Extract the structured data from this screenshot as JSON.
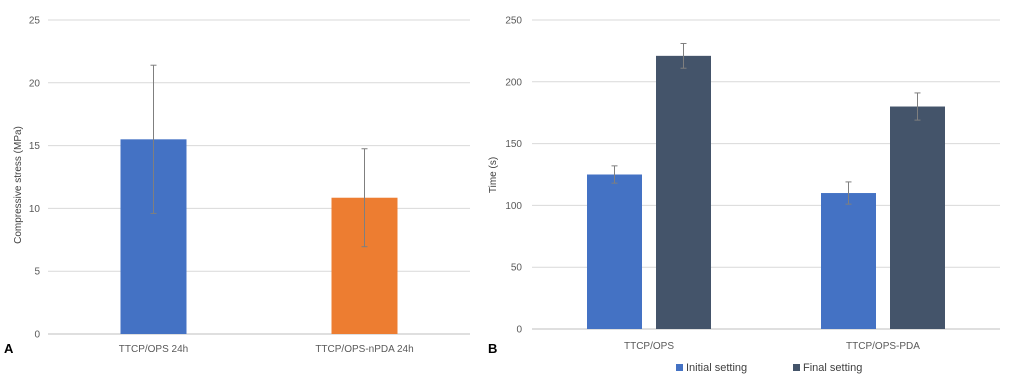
{
  "chart_data": [
    {
      "type": "bar",
      "panel_label": "A",
      "categories": [
        "TTCP/OPS 24h",
        "TTCP/OPS-nPDA 24h"
      ],
      "values": [
        15.5,
        10.85
      ],
      "errors": [
        5.9,
        3.9
      ],
      "bar_colors": [
        "#4472C4",
        "#ED7D31"
      ],
      "xlabel": "",
      "ylabel": "Compressive stress (MPa)",
      "ylim": [
        0,
        25
      ],
      "yticks": [
        "0",
        "5",
        "10",
        "15",
        "20",
        "25"
      ],
      "grid": true
    },
    {
      "type": "bar",
      "panel_label": "B",
      "categories": [
        "TTCP/OPS",
        "TTCP/OPS-PDA"
      ],
      "series": [
        {
          "name": "Initial setting",
          "values": [
            125,
            110
          ],
          "errors": [
            7,
            9
          ],
          "color": "#4472C4"
        },
        {
          "name": "Final setting",
          "values": [
            221,
            180
          ],
          "errors": [
            10,
            11
          ],
          "color": "#44546A"
        }
      ],
      "xlabel": "",
      "ylabel": "Time (s)",
      "ylim": [
        0,
        250
      ],
      "yticks": [
        "0",
        "50",
        "100",
        "150",
        "200",
        "250"
      ],
      "grid": true,
      "legend_position": "bottom"
    }
  ]
}
